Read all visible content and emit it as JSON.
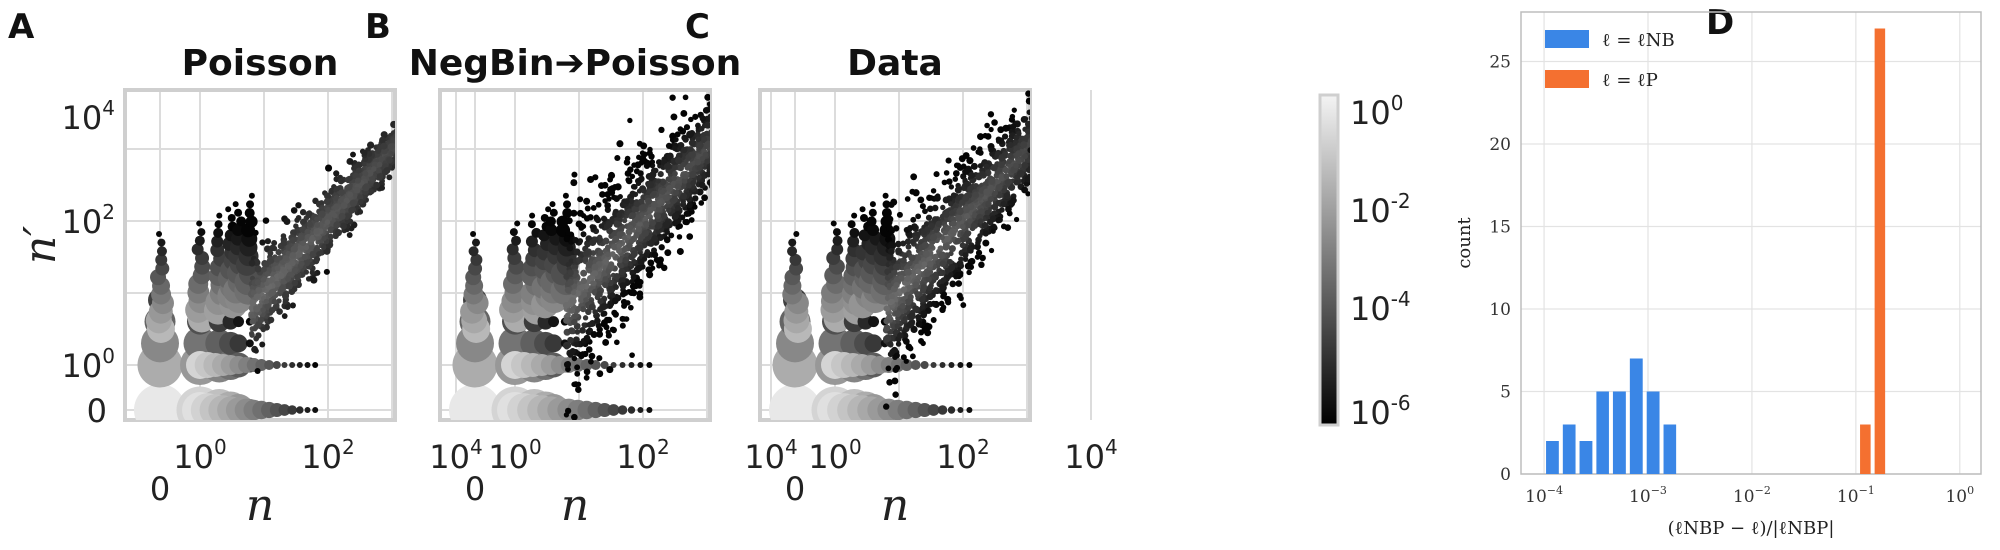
{
  "panels": [
    {
      "letter": "A",
      "title": "Poisson",
      "show_y_ticks": true
    },
    {
      "letter": "B",
      "title": "NegBin➔Poisson",
      "show_y_ticks": false
    },
    {
      "letter": "C",
      "title": "Data",
      "show_y_ticks": false
    }
  ],
  "scatter_axes": {
    "xlabel": "n",
    "ylabel": "n′",
    "x_ticks": [
      {
        "base": "0",
        "exp": ""
      },
      {
        "base": "10",
        "exp": "0"
      },
      {
        "base": "10",
        "exp": "2"
      },
      {
        "base": "10",
        "exp": "4"
      }
    ],
    "y_ticks": [
      {
        "base": "0",
        "exp": ""
      },
      {
        "base": "10",
        "exp": "0"
      },
      {
        "base": "10",
        "exp": "2"
      },
      {
        "base": "10",
        "exp": "4"
      }
    ]
  },
  "colorbar": {
    "ticks": [
      {
        "base": "10",
        "exp": "0"
      },
      {
        "base": "10",
        "exp": "-2"
      },
      {
        "base": "10",
        "exp": "-4"
      },
      {
        "base": "10",
        "exp": "-6"
      }
    ],
    "colors": [
      "#f4f4f4",
      "#000000"
    ]
  },
  "panel_d": {
    "letter": "D"
  },
  "chart_data": [
    {
      "type": "scatter",
      "title": "Poisson",
      "xlabel": "n",
      "ylabel": "n′",
      "x_scale": "symlog",
      "y_scale": "symlog",
      "xlim": [
        0,
        10000
      ],
      "ylim": [
        0,
        10000
      ],
      "color_scale": "log probability, 1e-6 (black) to 1e0 (light gray)",
      "max_point": [
        6300,
        6300
      ],
      "spread_decades": 0.55
    },
    {
      "type": "scatter",
      "title": "NegBin➔Poisson",
      "xlabel": "n",
      "ylabel": "n′",
      "x_scale": "symlog",
      "y_scale": "symlog",
      "xlim": [
        0,
        10000
      ],
      "ylim": [
        0,
        10000
      ],
      "color_scale": "log probability, 1e-6 (black) to 1e0 (light gray)",
      "max_point": [
        5000,
        4000
      ],
      "spread_decades": 1.2
    },
    {
      "type": "scatter",
      "title": "Data",
      "xlabel": "n",
      "ylabel": "n′",
      "x_scale": "symlog",
      "y_scale": "symlog",
      "xlim": [
        0,
        10000
      ],
      "ylim": [
        0,
        10000
      ],
      "color_scale": "log probability, 1e-6 (black) to 1e0 (light gray)",
      "max_point": [
        4500,
        4000
      ],
      "spread_decades": 1.0
    },
    {
      "type": "bar",
      "title": "",
      "xlabel": "(ℓNBP − ℓ)/|ℓNBP|",
      "ylabel": "count",
      "x_scale": "log",
      "xlim": [
        6e-05,
        1.6
      ],
      "ylim": [
        0,
        28
      ],
      "legend_position": "top-left",
      "x_ticks": [
        {
          "base": "10",
          "exp": "−4"
        },
        {
          "base": "10",
          "exp": "−3"
        },
        {
          "base": "10",
          "exp": "−2"
        },
        {
          "base": "10",
          "exp": "−1"
        },
        {
          "base": "10",
          "exp": "0"
        }
      ],
      "y_ticks": [
        "0",
        "5",
        "10",
        "15",
        "20",
        "25"
      ],
      "series": [
        {
          "name": "ℓ = ℓNB",
          "color": "#3a86e6",
          "bins": [
            {
              "lo": 0.0001,
              "hi": 0.000145,
              "count": 2
            },
            {
              "lo": 0.000145,
              "hi": 0.00021,
              "count": 3
            },
            {
              "lo": 0.00021,
              "hi": 0.000305,
              "count": 2
            },
            {
              "lo": 0.000305,
              "hi": 0.00044,
              "count": 5
            },
            {
              "lo": 0.00044,
              "hi": 0.00064,
              "count": 5
            },
            {
              "lo": 0.00064,
              "hi": 0.00093,
              "count": 7
            },
            {
              "lo": 0.00093,
              "hi": 0.00135,
              "count": 5
            },
            {
              "lo": 0.00135,
              "hi": 0.00195,
              "count": 3
            }
          ]
        },
        {
          "name": "ℓ = ℓP",
          "color": "#f47030",
          "bins": [
            {
              "lo": 0.105,
              "hi": 0.145,
              "count": 3
            },
            {
              "lo": 0.145,
              "hi": 0.2,
              "count": 27
            }
          ]
        }
      ]
    }
  ]
}
